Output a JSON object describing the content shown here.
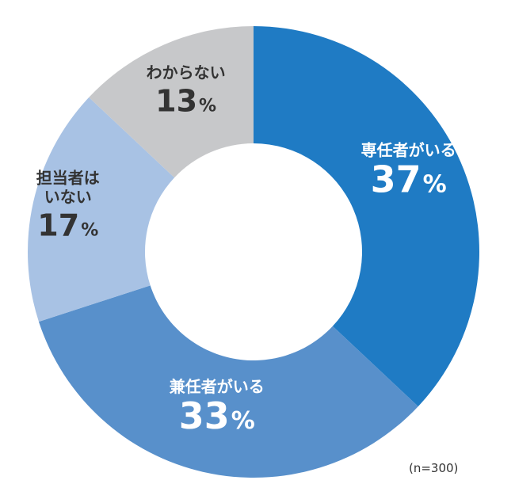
{
  "chart_data": {
    "type": "pie",
    "style": "donut",
    "start_angle_deg": 0,
    "direction": "clockwise",
    "categories": [
      "専任者がいる",
      "兼任者がいる",
      "担当者はいない",
      "わからない"
    ],
    "values": [
      37,
      33,
      17,
      13
    ],
    "value_unit": "%",
    "colors": [
      "#1f7bc4",
      "#5890cb",
      "#a8c2e4",
      "#c7c8ca"
    ],
    "label_text_colors": [
      "#ffffff",
      "#ffffff",
      "#333333",
      "#333333"
    ],
    "labels": [
      {
        "lines": [
          "専任者がいる"
        ],
        "value_text": "37",
        "suffix": "%"
      },
      {
        "lines": [
          "兼任者がいる"
        ],
        "value_text": "33",
        "suffix": "%"
      },
      {
        "lines": [
          "担当者は",
          "いない"
        ],
        "value_text": "17",
        "suffix": "%"
      },
      {
        "lines": [
          "わからない"
        ],
        "value_text": "13",
        "suffix": "%"
      }
    ],
    "note": "(n=300)"
  }
}
